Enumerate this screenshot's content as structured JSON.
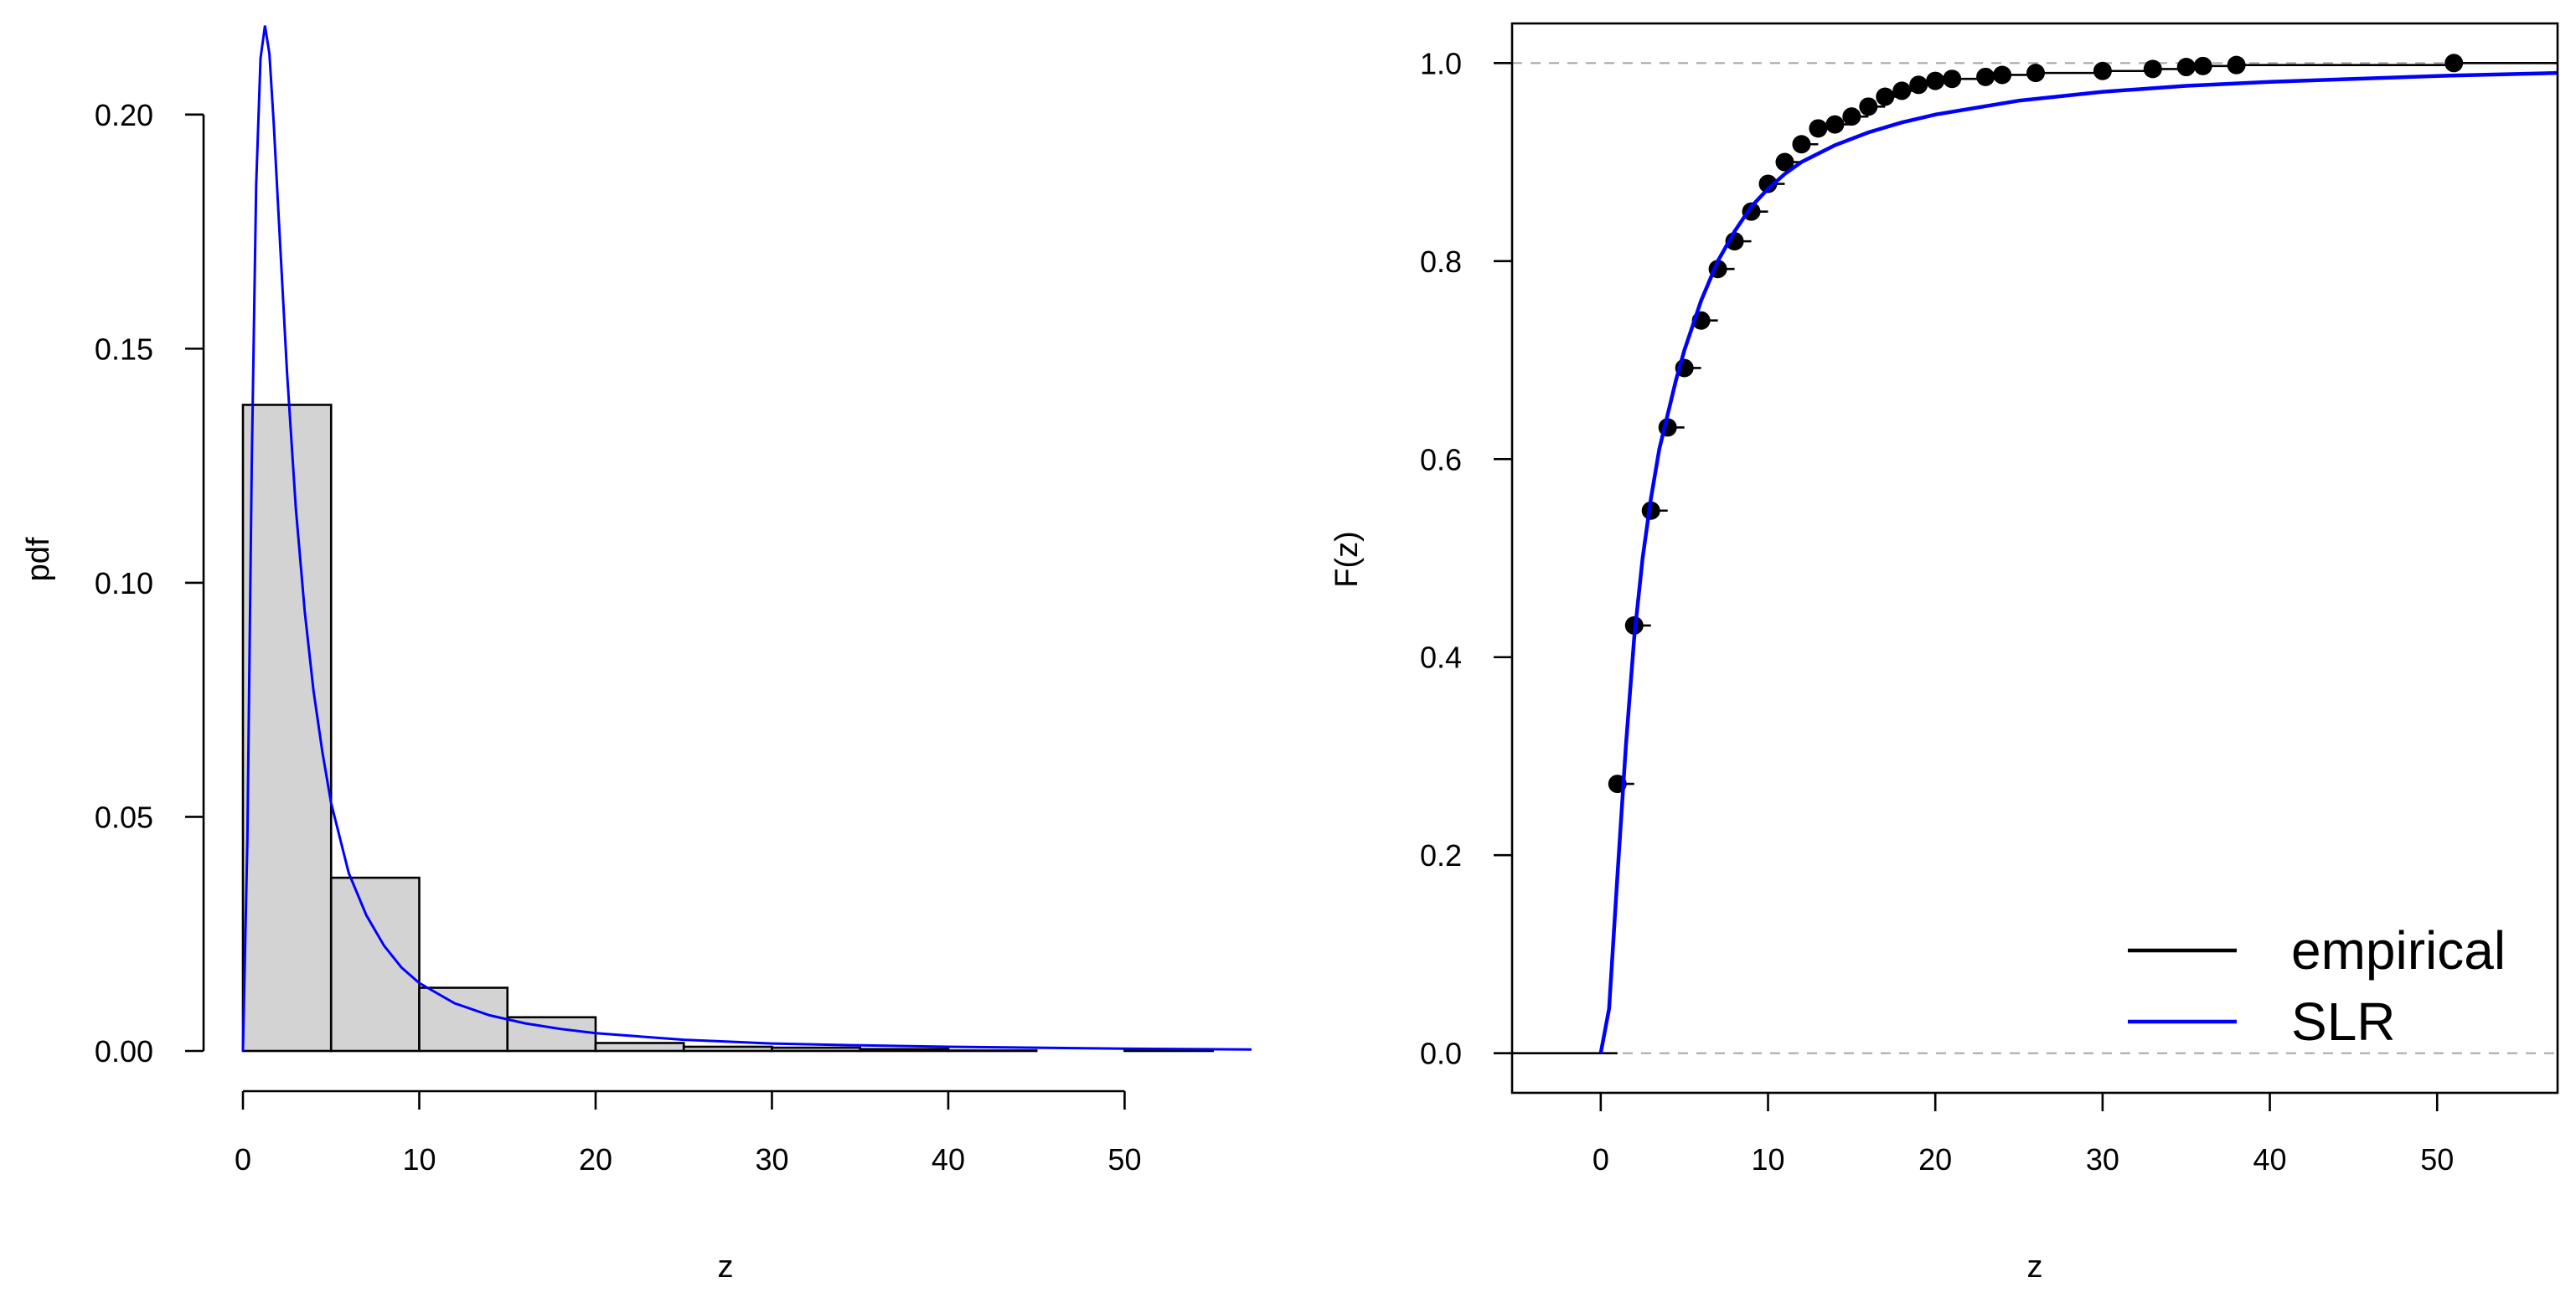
{
  "chart_data": [
    {
      "type": "bar",
      "panel": "left",
      "title": "",
      "xlabel": "z",
      "ylabel": "pdf",
      "xlim": [
        0,
        57.2
      ],
      "ylim": [
        0,
        0.22
      ],
      "xticks": [
        0,
        10,
        20,
        30,
        40,
        50
      ],
      "xtick_labels": [
        "0",
        "10",
        "20",
        "30",
        "40",
        "50"
      ],
      "yticks": [
        0,
        0.05,
        0.1,
        0.15,
        0.2
      ],
      "ytick_labels": [
        "0.00",
        "0.05",
        "0.10",
        "0.15",
        "0.20"
      ],
      "histogram": {
        "bin_edges": [
          0,
          5,
          10,
          15,
          20,
          25,
          30,
          35,
          40,
          45,
          50,
          55
        ],
        "density": [
          0.138,
          0.037,
          0.0135,
          0.0072,
          0.0017,
          0.0009,
          0.0007,
          0.0004,
          0.0001,
          0.0,
          0.0003
        ],
        "fill_color": "#d3d3d3"
      },
      "density_curve": {
        "color": "#0000ff",
        "x": [
          0,
          0.25,
          0.5,
          0.75,
          1.0,
          1.25,
          1.5,
          1.75,
          2.0,
          2.5,
          3.0,
          3.5,
          4.0,
          4.5,
          5.0,
          6.0,
          7.0,
          8.0,
          9.0,
          10.0,
          12.0,
          14.0,
          16.0,
          18.0,
          20.0,
          25.0,
          30.0,
          35.0,
          40.0,
          45.0,
          50.0,
          57.2
        ],
        "y": [
          0,
          0.045,
          0.125,
          0.185,
          0.212,
          0.219,
          0.213,
          0.198,
          0.18,
          0.145,
          0.116,
          0.094,
          0.077,
          0.064,
          0.053,
          0.038,
          0.029,
          0.0225,
          0.0178,
          0.0145,
          0.0102,
          0.0076,
          0.0059,
          0.0047,
          0.0038,
          0.0024,
          0.0016,
          0.0012,
          0.0009,
          0.0007,
          0.0005,
          0.0003
        ]
      }
    },
    {
      "type": "line",
      "panel": "right",
      "title": "",
      "xlabel": "z",
      "ylabel": "F(z)",
      "xlim": [
        -5.3,
        57.2
      ],
      "ylim": [
        -0.04,
        1.04
      ],
      "xticks": [
        0,
        10,
        20,
        30,
        40,
        50
      ],
      "xtick_labels": [
        "0",
        "10",
        "20",
        "30",
        "40",
        "50"
      ],
      "yticks": [
        0,
        0.2,
        0.4,
        0.6,
        0.8,
        1.0
      ],
      "ytick_labels": [
        "0.0",
        "0.2",
        "0.4",
        "0.6",
        "0.8",
        "1.0"
      ],
      "reference_lines_y": [
        0,
        1
      ],
      "series": [
        {
          "name": "empirical",
          "color": "#000000",
          "style": "step-points",
          "x": [
            1,
            2,
            3,
            4,
            5,
            6,
            7,
            8,
            9,
            10,
            11,
            12,
            13,
            14,
            15,
            16,
            17,
            18,
            19,
            20,
            21,
            23,
            24,
            26,
            30,
            33,
            35,
            36,
            38,
            51
          ],
          "y": [
            0.272,
            0.432,
            0.548,
            0.632,
            0.692,
            0.74,
            0.792,
            0.82,
            0.85,
            0.878,
            0.9,
            0.918,
            0.934,
            0.938,
            0.946,
            0.956,
            0.966,
            0.972,
            0.978,
            0.982,
            0.984,
            0.986,
            0.988,
            0.99,
            0.992,
            0.994,
            0.996,
            0.997,
            0.998,
            1.0
          ]
        },
        {
          "name": "SLR",
          "color": "#0000ff",
          "style": "line",
          "x": [
            0,
            0.5,
            1.0,
            1.5,
            2.0,
            2.5,
            3.0,
            3.5,
            4.0,
            4.5,
            5.0,
            6.0,
            7.0,
            8.0,
            9.0,
            10.0,
            11.0,
            12.0,
            14.0,
            16.0,
            18.0,
            20.0,
            25.0,
            30.0,
            35.0,
            40.0,
            45.0,
            50.0,
            57.2
          ],
          "y": [
            0,
            0.045,
            0.18,
            0.31,
            0.42,
            0.5,
            0.56,
            0.61,
            0.645,
            0.68,
            0.71,
            0.76,
            0.8,
            0.83,
            0.855,
            0.873,
            0.888,
            0.9,
            0.917,
            0.93,
            0.94,
            0.948,
            0.962,
            0.971,
            0.977,
            0.981,
            0.984,
            0.987,
            0.99
          ]
        }
      ],
      "legend": {
        "placement": "bottom-right",
        "entries": [
          {
            "label": "empirical",
            "color": "#000000"
          },
          {
            "label": "SLR",
            "color": "#0000ff"
          }
        ]
      }
    }
  ]
}
